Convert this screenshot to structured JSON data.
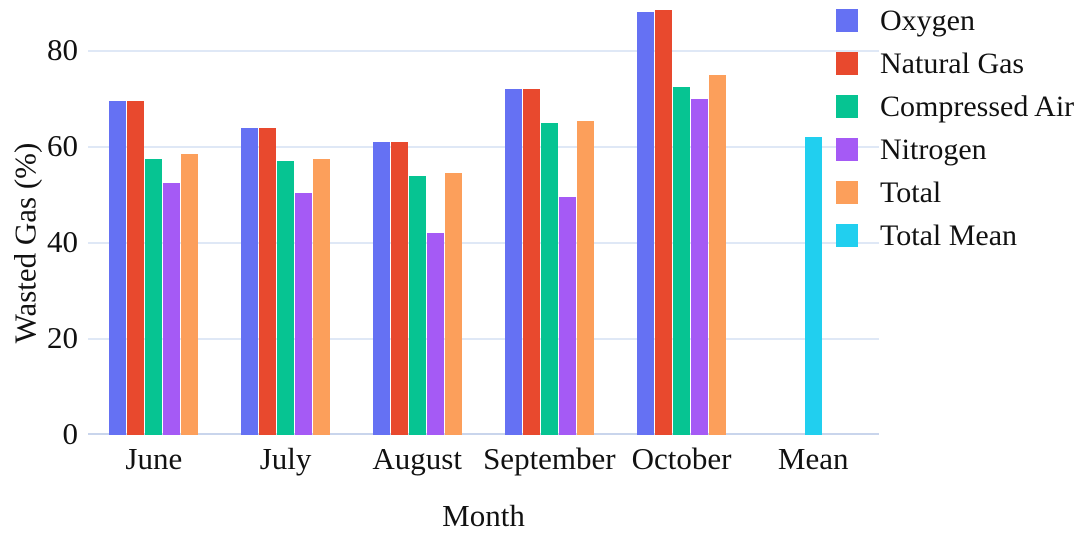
{
  "chart_data": {
    "type": "bar",
    "title": "",
    "xlabel": "Month",
    "ylabel": "Wasted Gas (%)",
    "ylim": [
      0,
      90.6
    ],
    "yticks": [
      0,
      20,
      40,
      60,
      80
    ],
    "grid": true,
    "legend_position": "top-right",
    "categories": [
      "June",
      "July",
      "August",
      "September",
      "October",
      "Mean"
    ],
    "series": [
      {
        "name": "Oxygen",
        "color": "#6571f3",
        "values": [
          69.5,
          64,
          61,
          72,
          88,
          null
        ]
      },
      {
        "name": "Natural Gas",
        "color": "#e8492e",
        "values": [
          69.5,
          64,
          61,
          72,
          88.5,
          null
        ]
      },
      {
        "name": "Compressed Air",
        "color": "#06c492",
        "values": [
          57.5,
          57,
          54,
          65,
          72.5,
          null
        ]
      },
      {
        "name": "Nitrogen",
        "color": "#a55af5",
        "values": [
          52.5,
          50.5,
          42,
          49.5,
          70,
          null
        ]
      },
      {
        "name": "Total",
        "color": "#fc9f5b",
        "values": [
          58.5,
          57.5,
          54.5,
          65.5,
          75,
          null
        ]
      },
      {
        "name": "Total Mean",
        "color": "#21cfef",
        "values": [
          null,
          null,
          null,
          null,
          null,
          62
        ]
      }
    ]
  },
  "colors": {
    "background": "#ffffff",
    "gridline": "#dfe8f6",
    "baseline": "#c9d5ec",
    "text": "#111111"
  }
}
